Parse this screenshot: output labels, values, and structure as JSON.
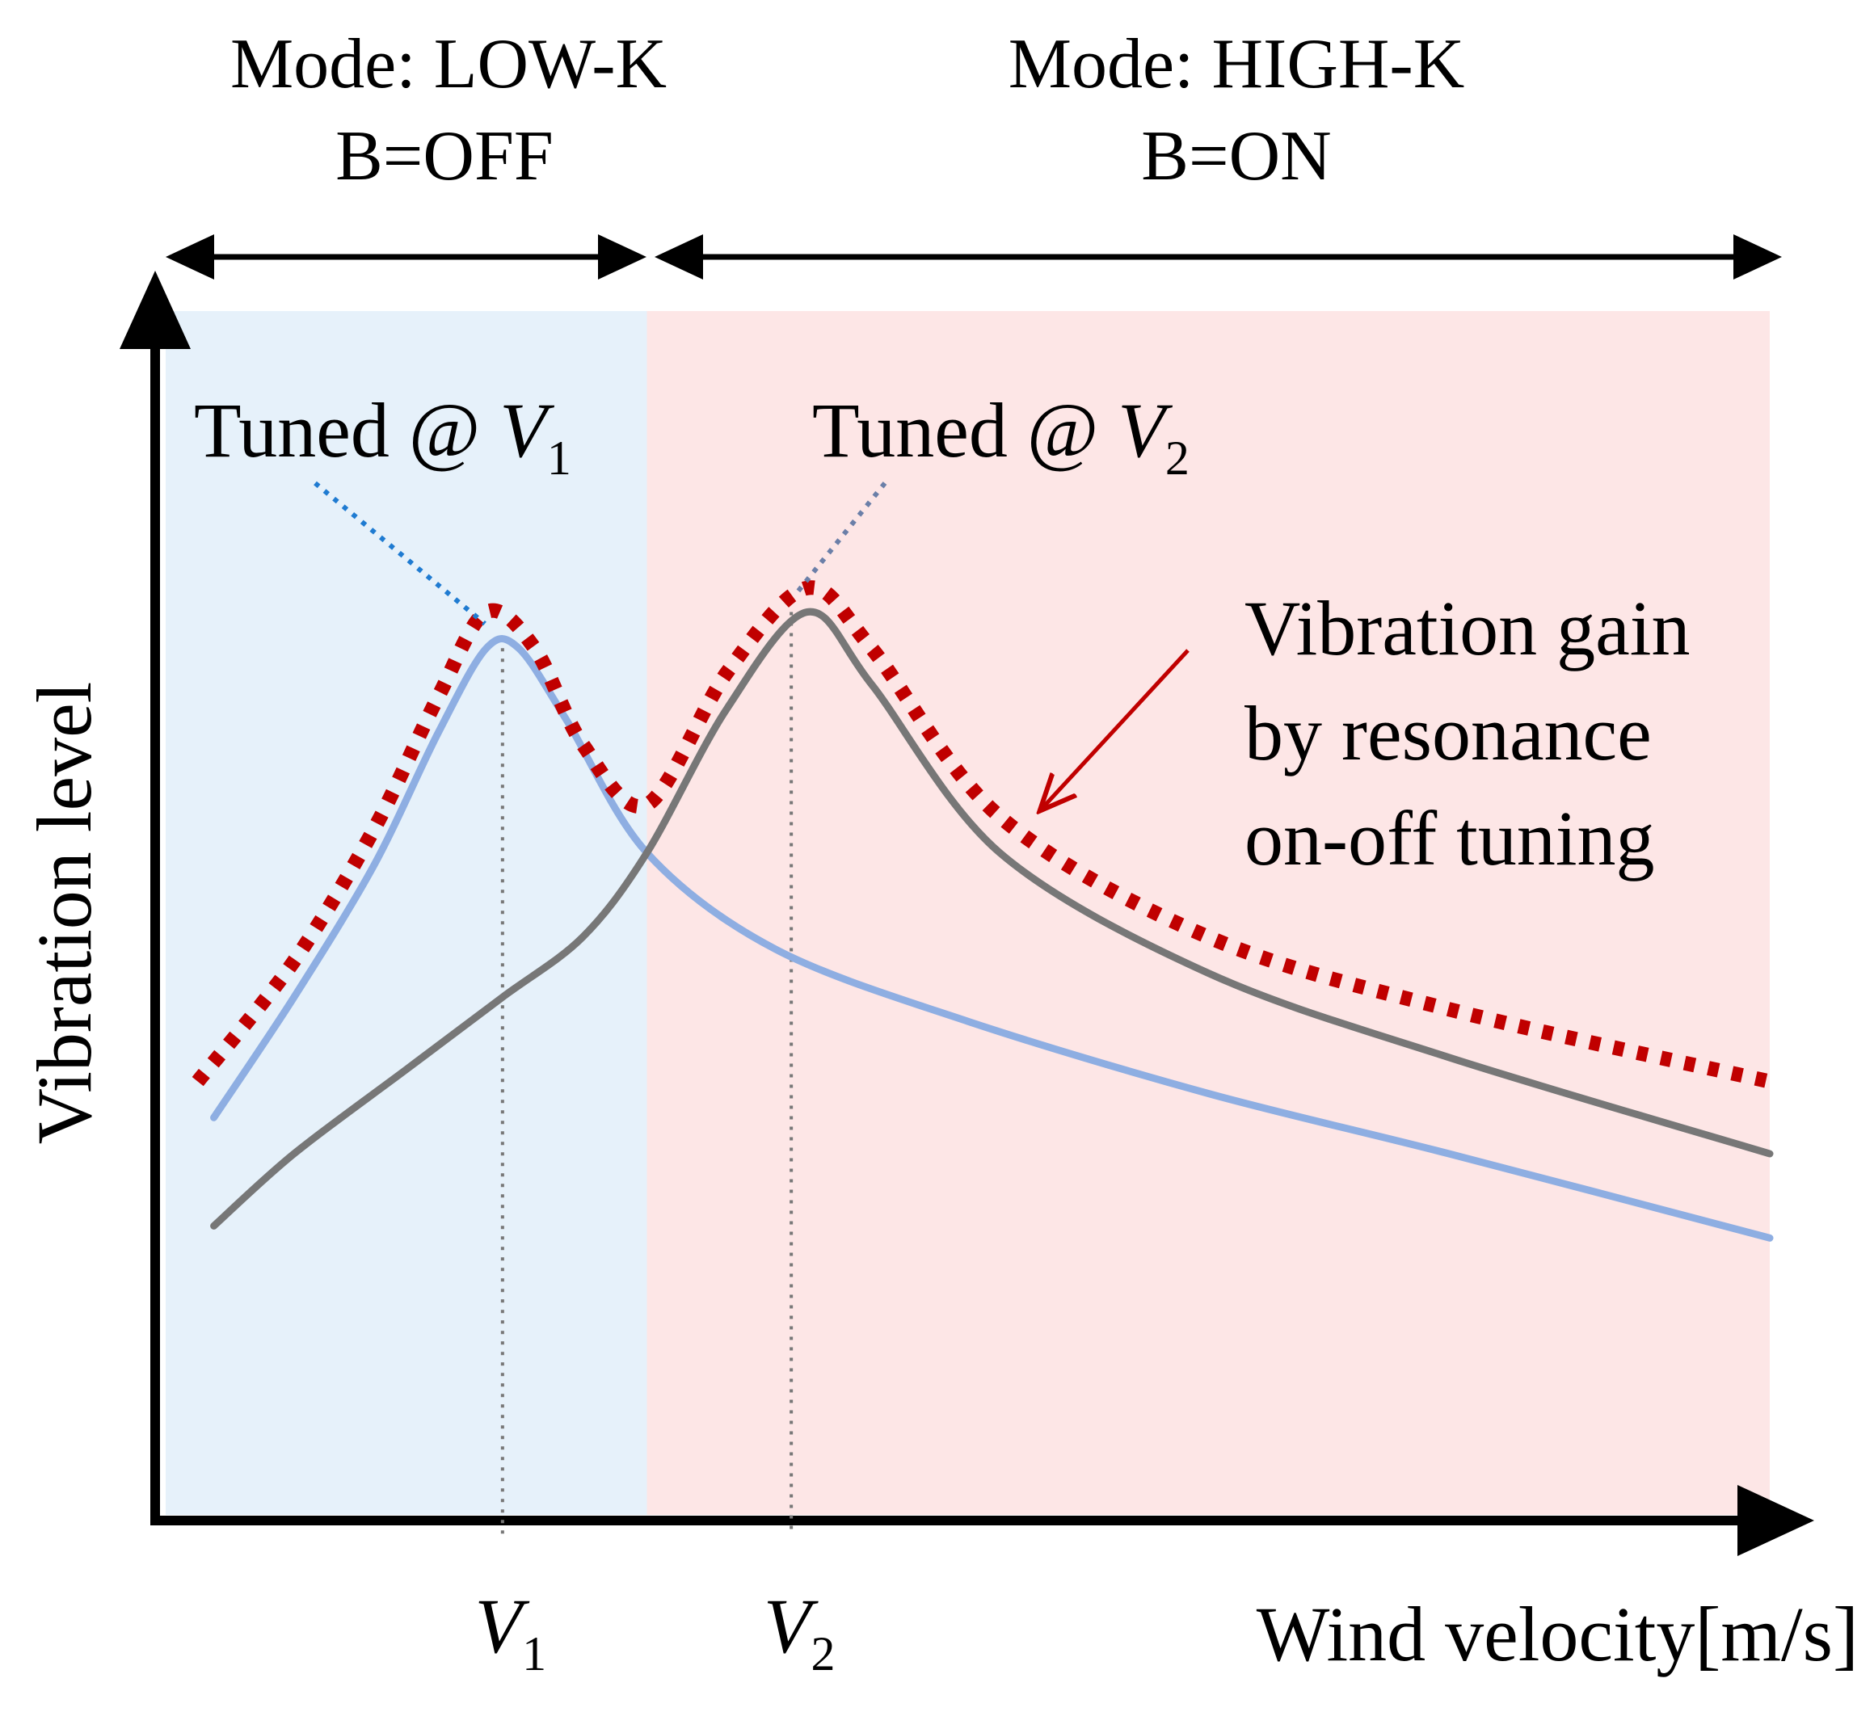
{
  "chart_data": {
    "type": "line",
    "x_axis_label": "Wind velocity[m/s]",
    "y_axis_label": "Vibration level",
    "x_ticks": [
      {
        "var": "V",
        "sub": "1",
        "value": 0.21
      },
      {
        "var": "V",
        "sub": "2",
        "value": 0.39
      }
    ],
    "regions": [
      {
        "mode_label": "Mode: LOW-K",
        "state_label": "B=OFF",
        "from": 0.0,
        "to": 0.3,
        "color": "#e6f1fa"
      },
      {
        "mode_label": "Mode: HIGH-K",
        "state_label": "B=ON",
        "from": 0.3,
        "to": 1.0,
        "color": "#fde6e6"
      }
    ],
    "annotations": {
      "tuned_v1": {
        "prefix": "Tuned @ ",
        "var": "V",
        "sub": "1"
      },
      "tuned_v2": {
        "prefix": "Tuned @ ",
        "var": "V",
        "sub": "2"
      },
      "gain": [
        "Vibration gain",
        "by resonance",
        "on-off tuning"
      ]
    },
    "xlim": [
      0,
      1
    ],
    "ylim": [
      0,
      1
    ],
    "series": [
      {
        "name": "Tuned @ V1",
        "color": "#8eaee2",
        "style": "solid",
        "x": [
          0.03,
          0.08,
          0.13,
          0.17,
          0.2,
          0.22,
          0.25,
          0.3,
          0.38,
          0.5,
          0.65,
          0.8,
          1.0
        ],
        "y": [
          0.33,
          0.43,
          0.54,
          0.65,
          0.72,
          0.72,
          0.66,
          0.55,
          0.47,
          0.41,
          0.35,
          0.3,
          0.23
        ]
      },
      {
        "name": "Tuned @ V2",
        "color": "#777777",
        "style": "solid",
        "x": [
          0.03,
          0.08,
          0.15,
          0.21,
          0.26,
          0.3,
          0.35,
          0.4,
          0.44,
          0.52,
          0.65,
          0.8,
          1.0
        ],
        "y": [
          0.24,
          0.3,
          0.37,
          0.43,
          0.48,
          0.55,
          0.67,
          0.75,
          0.69,
          0.55,
          0.45,
          0.38,
          0.3
        ]
      },
      {
        "name": "Vibration gain by resonance on-off tuning",
        "color": "#c00000",
        "style": "dotted",
        "x": [
          0.02,
          0.08,
          0.13,
          0.17,
          0.2,
          0.23,
          0.26,
          0.3,
          0.35,
          0.4,
          0.44,
          0.52,
          0.65,
          0.8,
          1.0
        ],
        "y": [
          0.36,
          0.46,
          0.57,
          0.68,
          0.75,
          0.72,
          0.64,
          0.59,
          0.7,
          0.77,
          0.72,
          0.58,
          0.48,
          0.42,
          0.36
        ]
      }
    ]
  },
  "colors": {
    "axis": "#000000",
    "leader_v1": "#1f7bd1",
    "leader_v2": "#6b7fa8",
    "gain_arrow": "#c00000"
  }
}
